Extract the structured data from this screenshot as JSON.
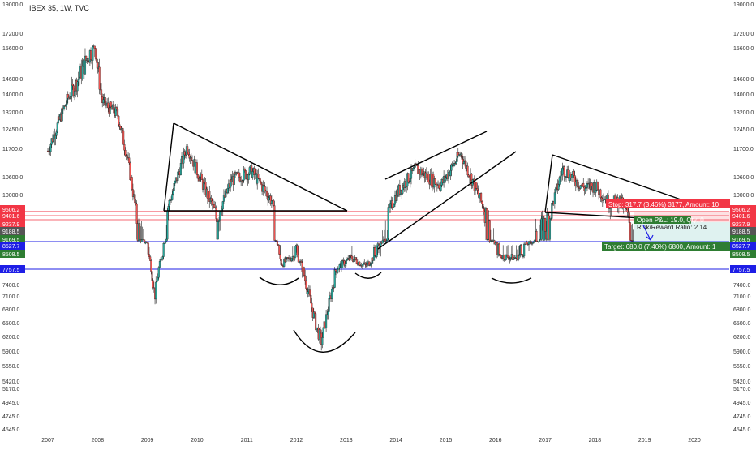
{
  "chart_data": {
    "type": "candlestick",
    "title": "IBEX 35, 1W, TVC",
    "y_scale": "log",
    "x_ticks": [
      "2007",
      "2008",
      "2009",
      "2010",
      "2011",
      "2012",
      "2013",
      "2014",
      "2015",
      "2016",
      "2017",
      "2018",
      "2019",
      "2020"
    ],
    "y_ticks": [
      "19000.0",
      "17200.0",
      "15600.0",
      "14600.0",
      "14000.0",
      "13200.0",
      "12450.0",
      "11700.0",
      "10600.0",
      "10000.0",
      "7400.0",
      "7100.0",
      "6800.0",
      "6500.0",
      "6200.0",
      "5900.0",
      "5650.0",
      "5420.0",
      "5170.0",
      "4945.0",
      "4745.0",
      "4545.0"
    ],
    "price_labels": [
      {
        "text": "9506.2",
        "value": 9506.2,
        "color": "#f23645"
      },
      {
        "text": "9401.6",
        "value": 9401.6,
        "color": "#f23645"
      },
      {
        "text": "9237.9",
        "value": 9237.9,
        "color": "#f23645"
      },
      {
        "text": "9188.5",
        "value": 9188.5,
        "color": "#555555"
      },
      {
        "text": "9169.5",
        "value": 9169.5,
        "color": "#2e7d32"
      },
      {
        "text": "8527.7",
        "value": 8527.7,
        "color": "#1e1ee6"
      },
      {
        "text": "8508.5",
        "value": 8508.5,
        "color": "#2e7d32"
      },
      {
        "text": "7757.5",
        "value": 7757.5,
        "color": "#1e1ee6"
      }
    ],
    "series_close_approx": [
      {
        "x": 2007.0,
        "y": 11600
      },
      {
        "x": 2007.4,
        "y": 13800
      },
      {
        "x": 2007.8,
        "y": 15300
      },
      {
        "x": 2007.95,
        "y": 15700
      },
      {
        "x": 2008.1,
        "y": 13600
      },
      {
        "x": 2008.4,
        "y": 13100
      },
      {
        "x": 2008.6,
        "y": 11300
      },
      {
        "x": 2008.8,
        "y": 9200
      },
      {
        "x": 2009.0,
        "y": 8800
      },
      {
        "x": 2009.15,
        "y": 7100
      },
      {
        "x": 2009.4,
        "y": 9500
      },
      {
        "x": 2009.8,
        "y": 11800
      },
      {
        "x": 2010.0,
        "y": 10800
      },
      {
        "x": 2010.4,
        "y": 9300
      },
      {
        "x": 2010.7,
        "y": 10500
      },
      {
        "x": 2011.1,
        "y": 10800
      },
      {
        "x": 2011.5,
        "y": 9800
      },
      {
        "x": 2011.7,
        "y": 8000
      },
      {
        "x": 2012.0,
        "y": 8500
      },
      {
        "x": 2012.4,
        "y": 6400
      },
      {
        "x": 2012.5,
        "y": 6100
      },
      {
        "x": 2012.8,
        "y": 7800
      },
      {
        "x": 2013.1,
        "y": 8300
      },
      {
        "x": 2013.4,
        "y": 7900
      },
      {
        "x": 2013.7,
        "y": 8800
      },
      {
        "x": 2014.0,
        "y": 10000
      },
      {
        "x": 2014.4,
        "y": 10900
      },
      {
        "x": 2014.9,
        "y": 10300
      },
      {
        "x": 2015.3,
        "y": 11500
      },
      {
        "x": 2015.7,
        "y": 9800
      },
      {
        "x": 2016.1,
        "y": 8400
      },
      {
        "x": 2016.4,
        "y": 8300
      },
      {
        "x": 2016.8,
        "y": 9000
      },
      {
        "x": 2017.1,
        "y": 9400
      },
      {
        "x": 2017.35,
        "y": 10900
      },
      {
        "x": 2017.8,
        "y": 10200
      },
      {
        "x": 2018.0,
        "y": 10300
      },
      {
        "x": 2018.3,
        "y": 9700
      },
      {
        "x": 2018.5,
        "y": 9800
      },
      {
        "x": 2018.75,
        "y": 9100
      }
    ],
    "position": {
      "stop_text": "Stop: 317.7 (3.46%) 3177, Amount: 10",
      "pnl_text": "Open P&L: 19.0, Qty: 0",
      "rr_text": "Risk/Reward Ratio: 2.14",
      "target_text": "Target: 680.0 (7.40%) 6800, Amount: 1",
      "stop_color": "#f23645",
      "target_color": "#2e7d32"
    },
    "grid": false,
    "colors": {
      "up": "#26a69a",
      "down": "#ef5350",
      "drawing": "#000000",
      "hline_red": "#f23645",
      "hline_blue": "#1e1ee6"
    }
  }
}
